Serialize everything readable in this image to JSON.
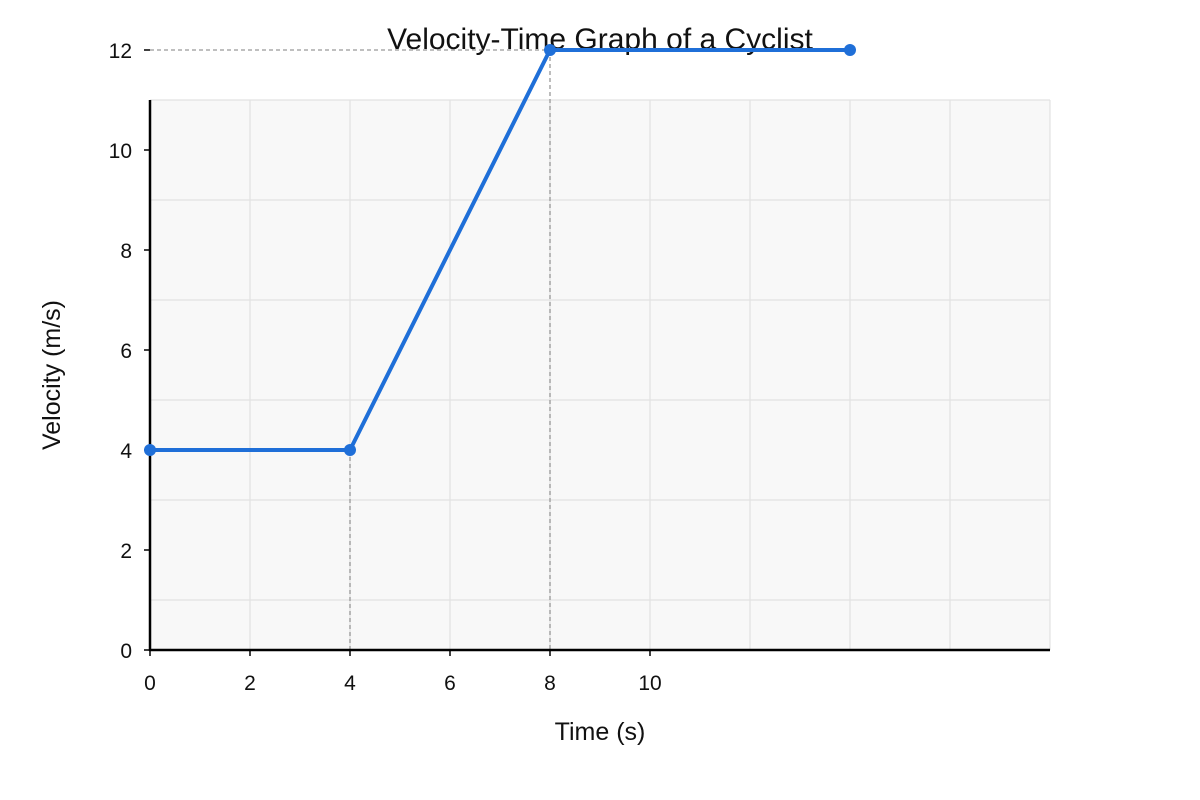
{
  "chart_data": {
    "type": "line",
    "title": "Velocity-Time Graph of a Cyclist",
    "xlabel": "Time (s)",
    "ylabel": "Velocity (m/s)",
    "xlim": [
      0,
      18
    ],
    "ylim": [
      0,
      12
    ],
    "x_ticks": [
      0,
      2,
      4,
      6,
      8,
      10
    ],
    "y_ticks": [
      0,
      2,
      4,
      6,
      8,
      10,
      12
    ],
    "grid": true,
    "series": [
      {
        "points": [
          {
            "x": 0,
            "y": 4
          },
          {
            "x": 4,
            "y": 4
          },
          {
            "x": 8,
            "y": 12
          },
          {
            "x": 14,
            "y": 12
          }
        ],
        "color": "#1f6fd8"
      }
    ],
    "reference_lines": [
      {
        "x": 4,
        "y": 4
      },
      {
        "x": 8,
        "y": 12
      }
    ],
    "colors": {
      "plot_background": "#f8f8f8",
      "grid": "#e2e2e2",
      "axis": "#000000",
      "reference": "#999999"
    }
  }
}
